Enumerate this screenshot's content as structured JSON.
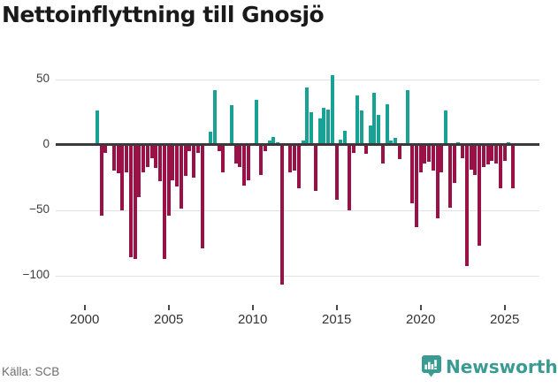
{
  "title": "Nettoinflyttning till Gnosjö",
  "source": "Källa: SCB",
  "branding": {
    "name": "Newsworthy",
    "badge_icon": "bar-chart-badge"
  },
  "colors": {
    "positive_bar": "#17a295",
    "negative_bar": "#9a1147",
    "zero_line": "#3a3a3a",
    "gridline": "#e2e2e2",
    "logo_teal": "#3b9a92"
  },
  "chart_data": {
    "type": "bar",
    "title": "Nettoinflyttning till Gnosjö",
    "frequency": "quarterly",
    "x_start": "2000-Q1",
    "x_end": "2025-Q3",
    "values": [
      0,
      0,
      0,
      26,
      -54,
      -6,
      0,
      -20,
      -22,
      -50,
      -21,
      -86,
      -87,
      -40,
      -21,
      -17,
      -10,
      -18,
      -28,
      -87,
      -54,
      -27,
      -32,
      -49,
      -24,
      -5,
      -25,
      -6,
      -79,
      0,
      10,
      42,
      -5,
      -21,
      0,
      30,
      -14,
      -17,
      -31,
      -27,
      0,
      34,
      -23,
      -5,
      3,
      6,
      2,
      -107,
      0,
      -21,
      -20,
      -33,
      3,
      44,
      25,
      -35,
      20,
      28,
      27,
      53,
      -42,
      4,
      11,
      -50,
      -6,
      38,
      26,
      -7,
      15,
      40,
      23,
      -14,
      31,
      3,
      5,
      -11,
      0,
      42,
      -45,
      -63,
      -21,
      -14,
      -13,
      -20,
      -56,
      -21,
      26,
      -48,
      -29,
      2,
      -10,
      -93,
      -19,
      -23,
      -77,
      -17,
      -15,
      -12,
      -14,
      -33,
      -12,
      2,
      -33
    ],
    "yticks": [
      {
        "value": 50,
        "label": "50"
      },
      {
        "value": 0,
        "label": "0"
      },
      {
        "value": -50,
        "label": "−50"
      },
      {
        "value": -100,
        "label": "−100"
      }
    ],
    "xticks": [
      {
        "year": 2000,
        "label": "2000"
      },
      {
        "year": 2005,
        "label": "2005"
      },
      {
        "year": 2010,
        "label": "2010"
      },
      {
        "year": 2015,
        "label": "2015"
      },
      {
        "year": 2020,
        "label": "2020"
      },
      {
        "year": 2025,
        "label": "2025"
      }
    ],
    "ylim": [
      -119,
      62
    ],
    "grid": true,
    "legend": false
  }
}
